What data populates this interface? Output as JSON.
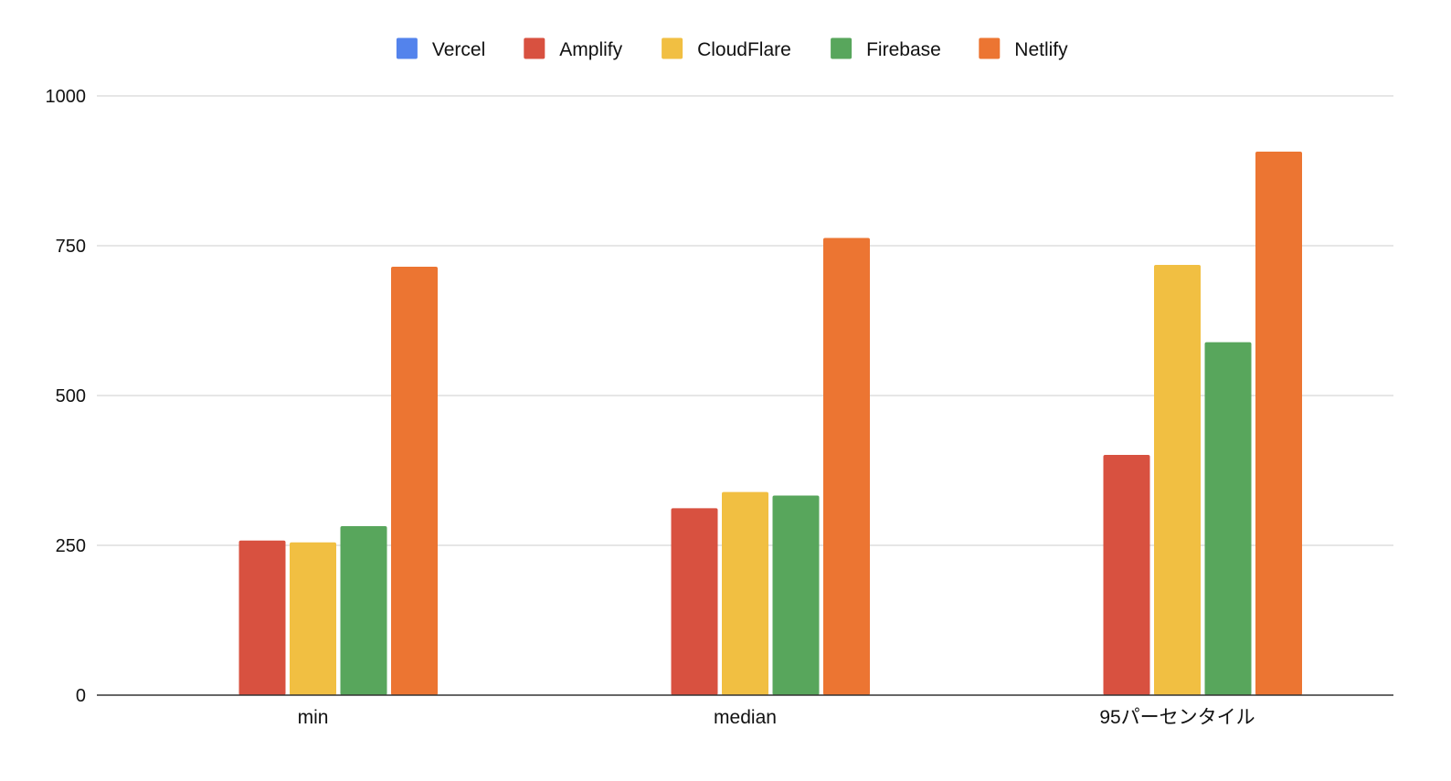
{
  "chart_data": {
    "type": "bar",
    "title": "",
    "xlabel": "",
    "ylabel": "",
    "categories": [
      "min",
      "median",
      "95パーセンタイル"
    ],
    "series": [
      {
        "name": "Vercel",
        "color": "#5383EC",
        "values": [
          0,
          0,
          0
        ]
      },
      {
        "name": "Amplify",
        "color": "#D85140",
        "values": [
          258,
          312,
          401
        ]
      },
      {
        "name": "CloudFlare",
        "color": "#F1BF42",
        "values": [
          255,
          339,
          718
        ]
      },
      {
        "name": "Firebase",
        "color": "#58A65C",
        "values": [
          282,
          333,
          589
        ]
      },
      {
        "name": "Netlify",
        "color": "#EC7532",
        "values": [
          715,
          763,
          907
        ]
      }
    ],
    "ylim": [
      0,
      1000
    ],
    "yticks": [
      0,
      250,
      500,
      750,
      1000
    ],
    "grid": true,
    "legend_position": "top-center"
  }
}
